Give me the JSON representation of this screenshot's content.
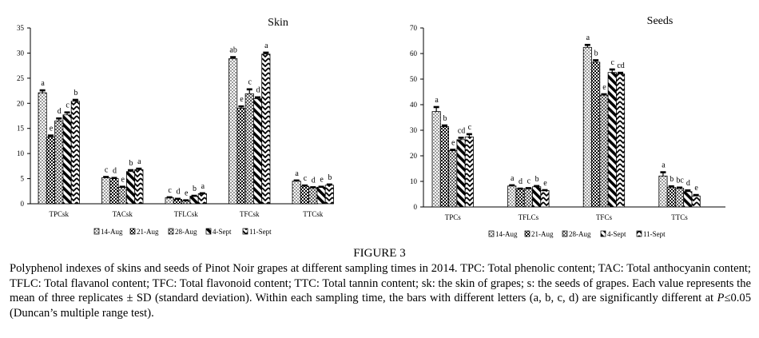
{
  "figure": {
    "label": "FIGURE 3",
    "caption_pre": "Polyphenol indexes of skins and seeds of Pinot Noir grapes at different sampling times in 2014. TPC: Total phenolic content; TAC: Total anthocyanin content; TFLC: Total flavanol content; TFC: Total flavonoid content; TTC: Total tannin content; sk: the skin of grapes; s: the seeds of grapes. Each value represents the mean of three replicates ± SD (standard deviation). Within each sampling time, the bars with different letters (a, b, c, d) are significantly different at ",
    "caption_p": "P",
    "caption_post": "≤0.05 (Duncan’s multiple range test)."
  },
  "chart_data": [
    {
      "type": "bar",
      "title": "Skin",
      "xlabel": "",
      "ylabel": "",
      "ylim": [
        0,
        35
      ],
      "yticks": [
        0,
        5,
        10,
        15,
        20,
        25,
        30,
        35
      ],
      "categories": [
        "TPCsk",
        "TACsk",
        "TFLCsk",
        "TFCsk",
        "TTCsk"
      ],
      "legend_position": "bottom",
      "series": [
        {
          "name": "14-Aug",
          "pattern": "dots",
          "values": [
            22.1,
            5.2,
            1.2,
            28.9,
            4.5
          ],
          "errors": [
            0.5,
            0.15,
            0.1,
            0.3,
            0.15
          ],
          "letters": [
            "a",
            "c",
            "c",
            "ab",
            "a"
          ]
        },
        {
          "name": "21-Aug",
          "pattern": "checker",
          "values": [
            13.3,
            5.0,
            0.9,
            19.0,
            3.5
          ],
          "errors": [
            0.3,
            0.15,
            0.1,
            0.4,
            0.15
          ],
          "letters": [
            "e",
            "d",
            "d",
            "e",
            "c"
          ]
        },
        {
          "name": "28-Aug",
          "pattern": "hatch",
          "values": [
            16.5,
            3.3,
            0.6,
            21.9,
            3.2
          ],
          "errors": [
            0.5,
            0.1,
            0.1,
            0.9,
            0.1
          ],
          "letters": [
            "d",
            "e",
            "e",
            "c",
            "d"
          ]
        },
        {
          "name": "4-Sept",
          "pattern": "diag",
          "values": [
            17.7,
            6.4,
            1.5,
            20.9,
            3.3
          ],
          "errors": [
            0.5,
            0.3,
            0.1,
            0.3,
            0.1
          ],
          "letters": [
            "c",
            "b",
            "b",
            "d",
            "e"
          ]
        },
        {
          "name": "11-Sept",
          "pattern": "zigzag",
          "values": [
            20.4,
            6.8,
            2.0,
            29.8,
            3.7
          ],
          "errors": [
            0.3,
            0.2,
            0.1,
            0.3,
            0.15
          ],
          "letters": [
            "b",
            "a",
            "a",
            "a",
            "b"
          ]
        }
      ]
    },
    {
      "type": "bar",
      "title": "Seeds",
      "xlabel": "",
      "ylabel": "",
      "ylim": [
        0,
        70
      ],
      "yticks": [
        0,
        10,
        20,
        30,
        40,
        50,
        60,
        70
      ],
      "categories": [
        "TPCs",
        "TFLCs",
        "TFCs",
        "TTCs"
      ],
      "legend_position": "bottom",
      "series": [
        {
          "name": "14-Aug",
          "pattern": "dots",
          "values": [
            37.3,
            8.2,
            62.4,
            12.1
          ],
          "errors": [
            1.8,
            0.3,
            1.0,
            1.5
          ],
          "letters": [
            "a",
            "a",
            "a",
            "a"
          ]
        },
        {
          "name": "21-Aug",
          "pattern": "checker",
          "values": [
            31.4,
            7.0,
            56.6,
            7.7
          ],
          "errors": [
            0.5,
            0.2,
            0.8,
            0.4
          ],
          "letters": [
            "b",
            "d",
            "b",
            "b"
          ]
        },
        {
          "name": "28-Aug",
          "pattern": "hatch",
          "values": [
            22.0,
            7.2,
            43.7,
            7.3
          ],
          "errors": [
            0.4,
            0.2,
            0.4,
            0.3
          ],
          "letters": [
            "e",
            "c",
            "e",
            "bc"
          ]
        },
        {
          "name": "4-Sept",
          "pattern": "diag",
          "values": [
            26.3,
            7.9,
            52.6,
            6.0
          ],
          "errors": [
            0.8,
            0.3,
            1.2,
            0.5
          ],
          "letters": [
            "cd",
            "b",
            "c",
            "d"
          ]
        },
        {
          "name": "11-Sept",
          "pattern": "zigzag",
          "values": [
            27.4,
            6.4,
            52.0,
            4.3
          ],
          "errors": [
            1.1,
            0.2,
            0.5,
            0.4
          ],
          "letters": [
            "c",
            "e",
            "cd",
            "e"
          ]
        }
      ]
    }
  ]
}
